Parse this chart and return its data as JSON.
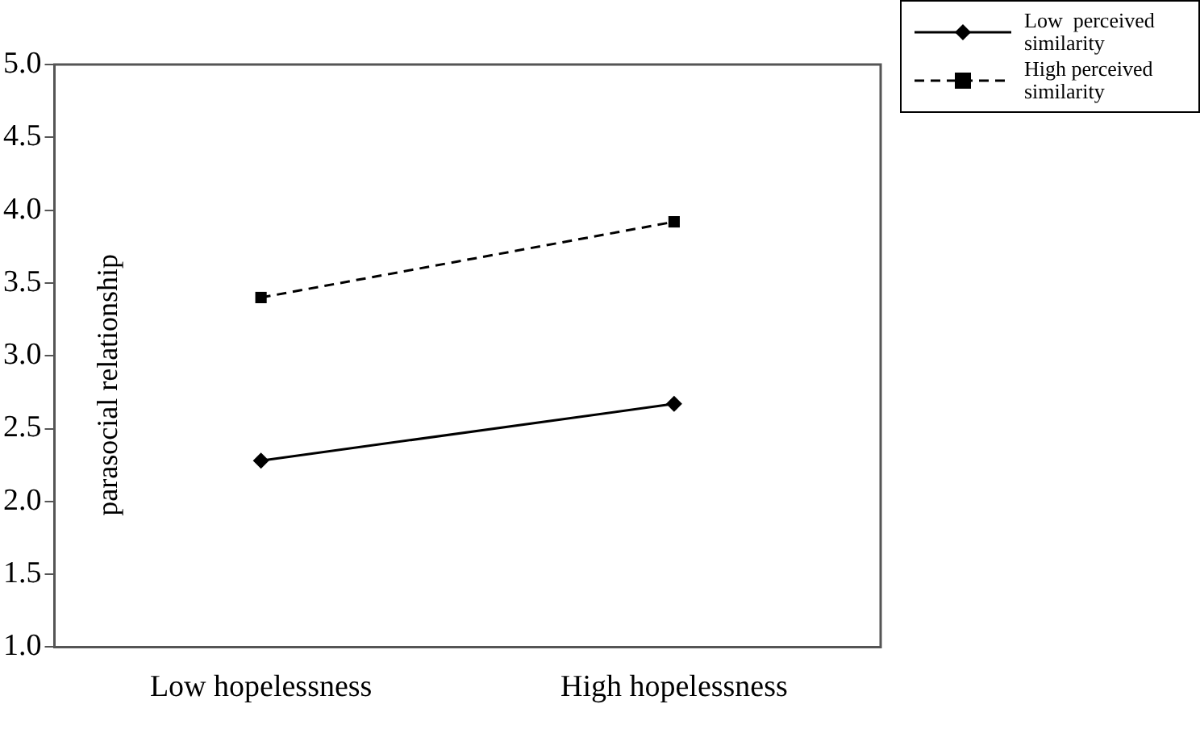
{
  "chart_data": {
    "type": "line",
    "ylabel": "parasocial relationship",
    "categories": [
      "Low hopelessness",
      "High hopelessness"
    ],
    "series": [
      {
        "name": "Low  perceived similarity",
        "color": "#000000",
        "values": [
          2.28,
          2.67
        ],
        "marker": "diamond",
        "line_style": "solid"
      },
      {
        "name": "High perceived similarity",
        "color": "#000000",
        "values": [
          3.4,
          3.92
        ],
        "marker": "square",
        "line_style": "dashed"
      }
    ],
    "ylim": [
      1.0,
      5.0
    ],
    "yticks": [
      {
        "value": 1,
        "label": "1.0"
      },
      {
        "value": 1.5,
        "label": "1.5"
      },
      {
        "value": 2,
        "label": "2.0"
      },
      {
        "value": 2.5,
        "label": "2.5"
      },
      {
        "value": 3,
        "label": "3.0"
      },
      {
        "value": 3.5,
        "label": "3.5"
      },
      {
        "value": 4,
        "label": "4.0"
      },
      {
        "value": 4.5,
        "label": "4.5"
      },
      {
        "value": 5,
        "label": "5.0"
      }
    ],
    "grid": false,
    "legend": "top right"
  }
}
